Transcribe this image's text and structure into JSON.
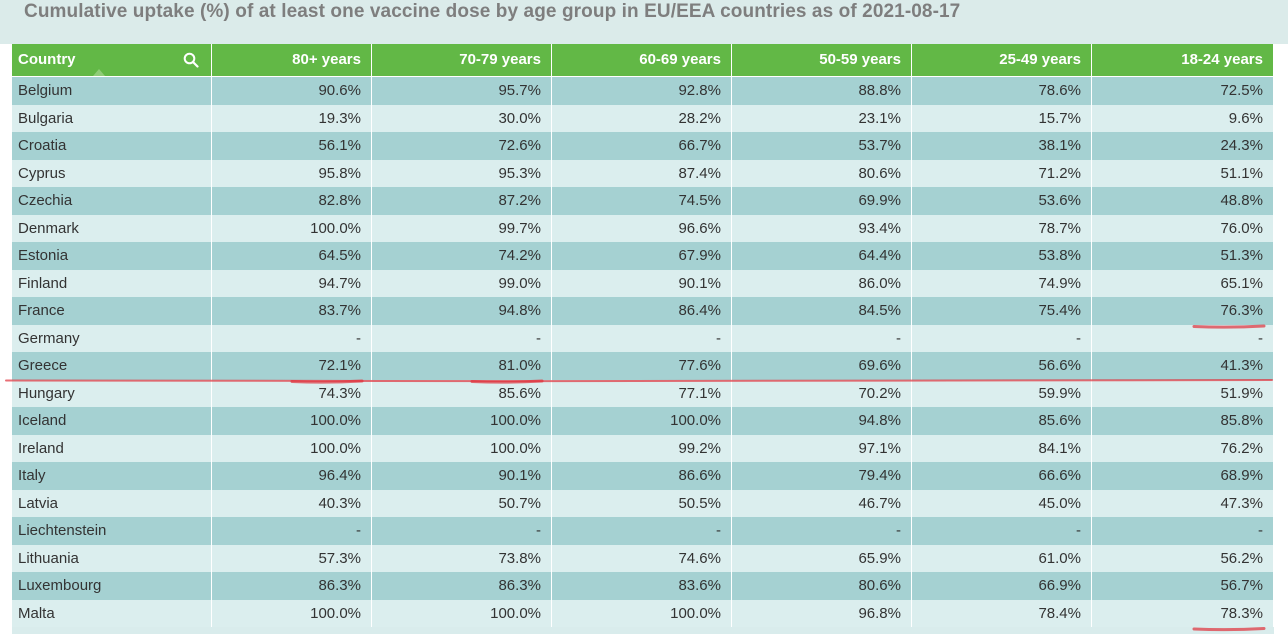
{
  "title": "Cumulative uptake (%) of at least one vaccine dose by age group in EU/EEA countries as of 2021-08-17",
  "chart_data": {
    "type": "table",
    "columns": [
      "Country",
      "80+ years",
      "70-79 years",
      "60-69 years",
      "50-59 years",
      "25-49 years",
      "18-24 years"
    ],
    "rows": [
      [
        "Belgium",
        "90.6%",
        "95.7%",
        "92.8%",
        "88.8%",
        "78.6%",
        "72.5%"
      ],
      [
        "Bulgaria",
        "19.3%",
        "30.0%",
        "28.2%",
        "23.1%",
        "15.7%",
        "9.6%"
      ],
      [
        "Croatia",
        "56.1%",
        "72.6%",
        "66.7%",
        "53.7%",
        "38.1%",
        "24.3%"
      ],
      [
        "Cyprus",
        "95.8%",
        "95.3%",
        "87.4%",
        "80.6%",
        "71.2%",
        "51.1%"
      ],
      [
        "Czechia",
        "82.8%",
        "87.2%",
        "74.5%",
        "69.9%",
        "53.6%",
        "48.8%"
      ],
      [
        "Denmark",
        "100.0%",
        "99.7%",
        "96.6%",
        "93.4%",
        "78.7%",
        "76.0%"
      ],
      [
        "Estonia",
        "64.5%",
        "74.2%",
        "67.9%",
        "64.4%",
        "53.8%",
        "51.3%"
      ],
      [
        "Finland",
        "94.7%",
        "99.0%",
        "90.1%",
        "86.0%",
        "74.9%",
        "65.1%"
      ],
      [
        "France",
        "83.7%",
        "94.8%",
        "86.4%",
        "84.5%",
        "75.4%",
        "76.3%"
      ],
      [
        "Germany",
        "-",
        "-",
        "-",
        "-",
        "-",
        "-"
      ],
      [
        "Greece",
        "72.1%",
        "81.0%",
        "77.6%",
        "69.6%",
        "56.6%",
        "41.3%"
      ],
      [
        "Hungary",
        "74.3%",
        "85.6%",
        "77.1%",
        "70.2%",
        "59.9%",
        "51.9%"
      ],
      [
        "Iceland",
        "100.0%",
        "100.0%",
        "100.0%",
        "94.8%",
        "85.6%",
        "85.8%"
      ],
      [
        "Ireland",
        "100.0%",
        "100.0%",
        "99.2%",
        "97.1%",
        "84.1%",
        "76.2%"
      ],
      [
        "Italy",
        "96.4%",
        "90.1%",
        "86.6%",
        "79.4%",
        "66.6%",
        "68.9%"
      ],
      [
        "Latvia",
        "40.3%",
        "50.7%",
        "50.5%",
        "46.7%",
        "45.0%",
        "47.3%"
      ],
      [
        "Liechtenstein",
        "-",
        "-",
        "-",
        "-",
        "-",
        "-"
      ],
      [
        "Lithuania",
        "57.3%",
        "73.8%",
        "74.6%",
        "65.9%",
        "61.0%",
        "56.2%"
      ],
      [
        "Luxembourg",
        "86.3%",
        "86.3%",
        "83.6%",
        "80.6%",
        "66.9%",
        "56.7%"
      ],
      [
        "Malta",
        "100.0%",
        "100.0%",
        "100.0%",
        "96.8%",
        "78.4%",
        "78.3%"
      ]
    ]
  },
  "icons": {
    "search": "search-icon",
    "sort": "sort-ascending-indicator"
  },
  "colors": {
    "header": "#62b846",
    "row_odd": "#a5d1d2",
    "row_even": "#dbeeee",
    "title": "#7e7e7e",
    "annotation": "#e0303a"
  },
  "annotations": [
    {
      "kind": "underline-row",
      "row": "Greece"
    },
    {
      "kind": "underline-cell",
      "row": "France",
      "column": "18-24 years"
    },
    {
      "kind": "underline-cell",
      "row": "Greece",
      "column": "80+ years"
    },
    {
      "kind": "underline-cell",
      "row": "Greece",
      "column": "70-79 years"
    },
    {
      "kind": "underline-cell",
      "row": "Malta",
      "column": "18-24 years"
    }
  ]
}
